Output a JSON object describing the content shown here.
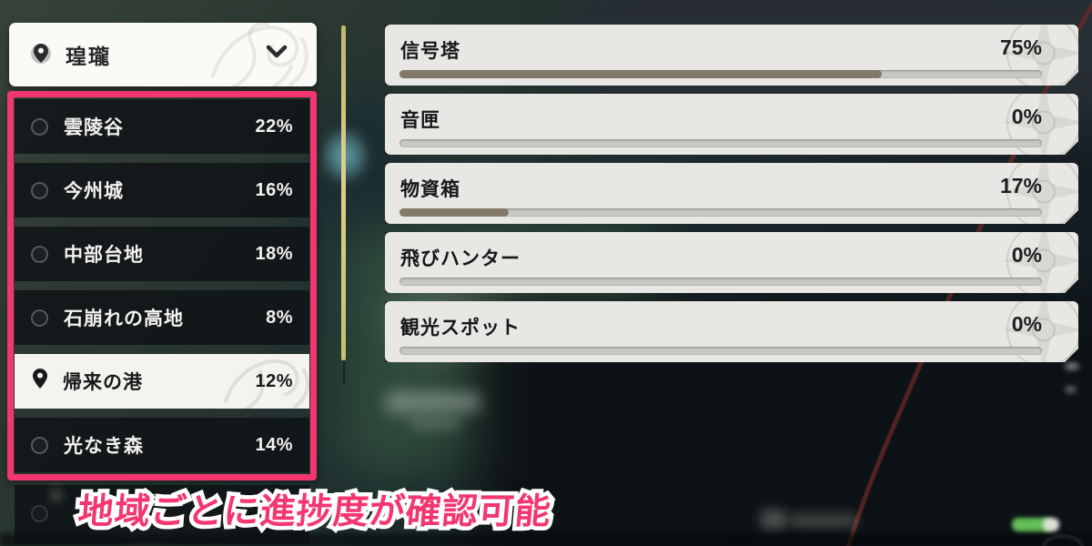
{
  "region_dropdown": {
    "label": "瑝瓏",
    "pin_icon": "map-pin",
    "chevron_icon": "chevron-down"
  },
  "region_list": [
    {
      "name": "雲陵谷",
      "percent": "22%",
      "selected": false
    },
    {
      "name": "今州城",
      "percent": "16%",
      "selected": false
    },
    {
      "name": "中部台地",
      "percent": "18%",
      "selected": false
    },
    {
      "name": "石崩れの高地",
      "percent": "8%",
      "selected": false
    },
    {
      "name": "帰来の港",
      "percent": "12%",
      "selected": true
    },
    {
      "name": "光なき森",
      "percent": "14%",
      "selected": false
    }
  ],
  "progress_panel": {
    "items": [
      {
        "label": "信号塔",
        "percent": "75%",
        "value": 75
      },
      {
        "label": "音匣",
        "percent": "0%",
        "value": 0
      },
      {
        "label": "物資箱",
        "percent": "17%",
        "value": 17
      },
      {
        "label": "飛びハンター",
        "percent": "0%",
        "value": 0
      },
      {
        "label": "観光スポット",
        "percent": "0%",
        "value": 0
      }
    ]
  },
  "caption": {
    "text": "地域ごとに進捗度が確認可能"
  },
  "icons": {
    "selected_region": "map-pin-filled",
    "unselected_region": "circle-outline",
    "card_watermark": "compass-rose",
    "dropdown_watermark": "floral-swirl"
  },
  "colors": {
    "annotation_pink": "#f3366f",
    "divider_yellow": "#ddd08a",
    "card_background": "#e8e7e3",
    "progress_fill": "#82796a",
    "progress_track": "#c9c8c3",
    "list_item_dark": "rgba(13,16,20,0.78)",
    "selected_item_light": "#f4f3ee"
  }
}
